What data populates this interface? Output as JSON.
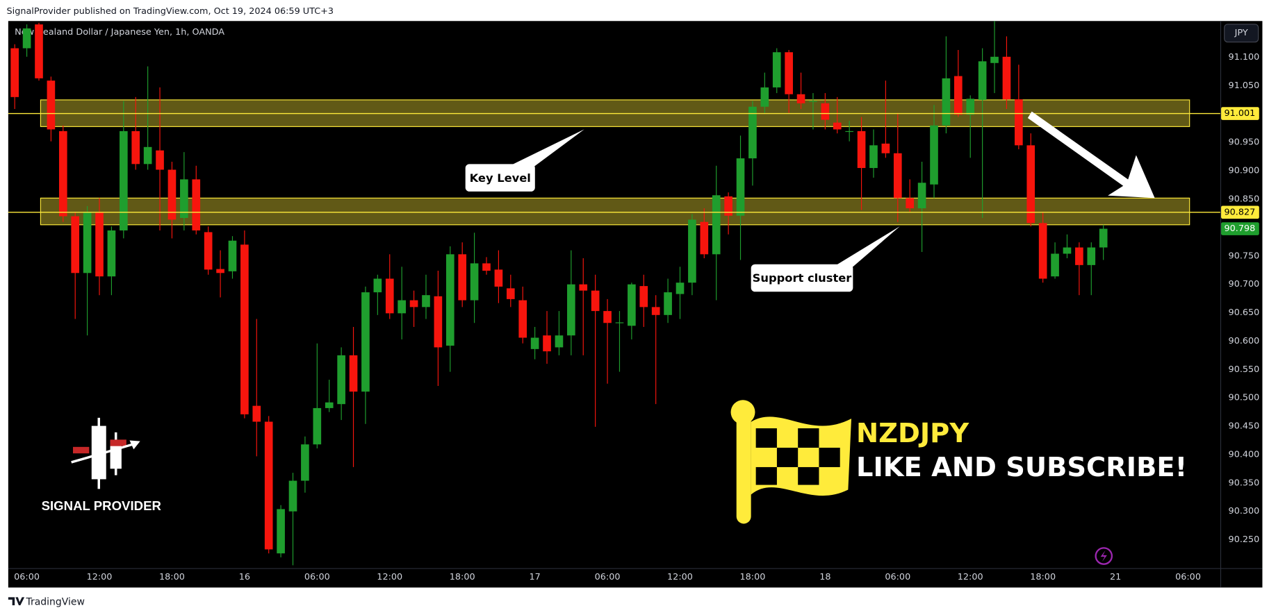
{
  "header": {
    "publisher_line": "SignalProvider published on TradingView.com, Oct 19, 2024 06:59 UTC+3"
  },
  "footer": {
    "brand": "TradingView"
  },
  "currency_button": "JPY",
  "overlay": {
    "symbol": "NZDJPY",
    "call_to_action": "LIKE AND SUBSCRIBE!",
    "logo_text": "SIGNAL PROVIDER"
  },
  "chart_data": {
    "type": "candlestick",
    "title": "New Zealand Dollar / Japanese Yen, 1h, OANDA",
    "categories": [
      null,
      "06:00",
      null,
      null,
      null,
      null,
      null,
      "12:00",
      null,
      null,
      null,
      null,
      null,
      "18:00",
      null,
      null,
      null,
      null,
      null,
      "16",
      null,
      null,
      null,
      null,
      null,
      "06:00",
      null,
      null,
      null,
      null,
      null,
      "12:00",
      null,
      null,
      null,
      null,
      null,
      "18:00",
      null,
      null,
      null,
      null,
      null,
      "17",
      null,
      null,
      null,
      null,
      null,
      "06:00",
      null,
      null,
      null,
      null,
      null,
      "12:00",
      null,
      null,
      null,
      null,
      null,
      "18:00",
      null,
      null,
      null,
      null,
      null,
      "18",
      null,
      null,
      null,
      null,
      null,
      "06:00",
      null,
      null,
      null,
      null,
      null,
      "12:00",
      null,
      null,
      null,
      null,
      null,
      "18:00",
      null,
      null,
      null,
      null,
      null,
      "21",
      null,
      null,
      null,
      null,
      null,
      "06:00",
      null
    ],
    "open": [
      91.116,
      91.116,
      91.158,
      91.059,
      90.97,
      90.82,
      90.72,
      90.828,
      90.714,
      90.795,
      90.97,
      90.912,
      90.936,
      90.902,
      90.817,
      90.885,
      90.792,
      90.727,
      90.723,
      90.77,
      90.486,
      90.458,
      90.226,
      90.3,
      90.354,
      90.418,
      90.482,
      90.489,
      90.575,
      90.511,
      90.686,
      90.71,
      90.649,
      90.672,
      90.66,
      90.679,
      90.592,
      90.753,
      90.672,
      90.737,
      90.726,
      90.693,
      90.672,
      90.586,
      90.61,
      90.589,
      90.61,
      90.7,
      90.689,
      90.653,
      90.632,
      90.627,
      90.697,
      90.66,
      90.646,
      90.683,
      90.703,
      90.81,
      90.753,
      90.855,
      90.821,
      90.922,
      91.013,
      91.047,
      91.109,
      91.035,
      91.022,
      91.019,
      90.985,
      90.969,
      90.97,
      90.905,
      90.948,
      90.931,
      90.852,
      90.834,
      90.876,
      90.98,
      91.067,
      90.999,
      91.025,
      91.09,
      91.101,
      91.026,
      90.945,
      90.808,
      90.714,
      90.754,
      90.765,
      90.734,
      90.765,
      null,
      null,
      null,
      null,
      null,
      null,
      null,
      null
    ],
    "high": [
      91.123,
      91.158,
      91.161,
      91.066,
      90.98,
      90.828,
      90.838,
      90.852,
      90.802,
      91.023,
      91.03,
      91.084,
      91.047,
      90.916,
      90.933,
      90.909,
      90.802,
      90.76,
      90.785,
      90.795,
      90.639,
      90.468,
      90.311,
      90.368,
      90.432,
      90.596,
      90.532,
      90.589,
      90.625,
      90.696,
      90.717,
      90.753,
      90.731,
      90.689,
      90.717,
      90.724,
      90.767,
      90.774,
      90.791,
      90.748,
      90.76,
      90.717,
      90.696,
      90.625,
      90.653,
      90.653,
      90.76,
      90.746,
      90.717,
      90.674,
      90.653,
      90.703,
      90.717,
      90.681,
      90.71,
      90.731,
      90.824,
      90.834,
      90.909,
      90.862,
      90.962,
      91.023,
      91.073,
      91.116,
      91.113,
      91.073,
      91.037,
      91.037,
      91.03,
      90.988,
      90.995,
      90.973,
      91.059,
      91.002,
      90.885,
      90.916,
      91.016,
      91.137,
      91.113,
      91.033,
      91.116,
      91.166,
      91.137,
      91.087,
      90.966,
      90.828,
      90.774,
      90.788,
      90.774,
      90.774,
      90.805,
      null,
      null,
      null,
      null,
      null,
      null,
      null,
      null
    ],
    "low": [
      91.009,
      91.101,
      91.059,
      90.952,
      90.81,
      90.639,
      90.61,
      90.681,
      90.681,
      90.781,
      90.902,
      90.902,
      90.795,
      90.781,
      90.795,
      90.788,
      90.717,
      90.677,
      90.71,
      90.464,
      90.397,
      90.226,
      90.219,
      90.205,
      90.333,
      90.411,
      90.475,
      90.461,
      90.378,
      90.454,
      90.646,
      90.639,
      90.603,
      90.625,
      90.639,
      90.521,
      90.546,
      90.66,
      90.632,
      90.717,
      90.667,
      90.66,
      90.596,
      90.568,
      90.56,
      90.575,
      90.575,
      90.575,
      90.449,
      90.525,
      90.546,
      90.603,
      90.625,
      90.489,
      90.632,
      90.639,
      90.681,
      90.746,
      90.672,
      90.788,
      90.743,
      90.874,
      91.002,
      91.037,
      91.002,
      91.009,
      90.973,
      90.973,
      90.966,
      90.952,
      90.831,
      90.888,
      90.923,
      90.81,
      90.828,
      90.757,
      90.852,
      90.966,
      90.995,
      90.923,
      90.817,
      91.037,
      91.009,
      90.938,
      90.802,
      90.703,
      90.71,
      90.746,
      90.681,
      90.681,
      90.743,
      null,
      null,
      null,
      null,
      null,
      null,
      null,
      null
    ],
    "close": [
      91.03,
      91.151,
      91.063,
      90.973,
      90.82,
      90.72,
      90.828,
      90.714,
      90.795,
      90.97,
      90.912,
      90.942,
      90.902,
      90.814,
      90.885,
      90.795,
      90.726,
      90.72,
      90.777,
      90.471,
      90.458,
      90.233,
      90.304,
      90.354,
      90.418,
      90.482,
      90.492,
      90.575,
      90.511,
      90.686,
      90.71,
      90.649,
      90.672,
      90.66,
      90.681,
      90.589,
      90.753,
      90.672,
      90.737,
      90.724,
      90.696,
      90.674,
      90.606,
      90.606,
      90.582,
      90.61,
      90.7,
      90.689,
      90.653,
      90.632,
      90.633,
      90.7,
      90.66,
      90.646,
      90.686,
      90.703,
      90.814,
      90.753,
      90.857,
      90.821,
      90.922,
      91.013,
      91.047,
      91.109,
      91.035,
      91.019,
      91.023,
      90.99,
      90.973,
      90.97,
      90.905,
      90.945,
      90.931,
      90.852,
      90.834,
      90.879,
      90.98,
      91.063,
      90.999,
      91.027,
      91.093,
      91.101,
      91.026,
      90.945,
      90.808,
      90.71,
      90.754,
      90.765,
      90.734,
      90.765,
      90.798,
      null,
      null,
      null,
      null,
      null,
      null,
      null,
      null
    ],
    "up_color": "#1f9e2e",
    "down_color": "#f7150d",
    "ylim": [
      90.2,
      91.164
    ],
    "yticks": [
      {
        "value": 91.1,
        "label": "91.100"
      },
      {
        "value": 91.05,
        "label": "91.050"
      },
      {
        "value": 90.95,
        "label": "90.950"
      },
      {
        "value": 90.9,
        "label": "90.900"
      },
      {
        "value": 90.85,
        "label": "90.850"
      },
      {
        "value": 90.75,
        "label": "90.750"
      },
      {
        "value": 90.7,
        "label": "90.700"
      },
      {
        "value": 90.65,
        "label": "90.650"
      },
      {
        "value": 90.6,
        "label": "90.600"
      },
      {
        "value": 90.55,
        "label": "90.550"
      },
      {
        "value": 90.5,
        "label": "90.500"
      },
      {
        "value": 90.45,
        "label": "90.450"
      },
      {
        "value": 90.4,
        "label": "90.400"
      },
      {
        "value": 90.35,
        "label": "90.350"
      },
      {
        "value": 90.3,
        "label": "90.300"
      },
      {
        "value": 90.25,
        "label": "90.250"
      }
    ],
    "grid": false,
    "zones": [
      {
        "high": 91.025,
        "low": 90.978
      },
      {
        "high": 90.852,
        "low": 90.805
      }
    ],
    "zone_color": "#ffeb3b",
    "price_labels": [
      {
        "value": 91.001,
        "color": "#ffeb3b",
        "text_color": "#000000",
        "line": true
      },
      {
        "value": 90.827,
        "color": "#ffeb3b",
        "text_color": "#000000",
        "line": true
      },
      {
        "value": 90.798,
        "color": "#1f9e2e",
        "text_color": "#ffffff",
        "line": false
      }
    ],
    "annotations": [
      "Key Level",
      "Support cluster"
    ]
  }
}
